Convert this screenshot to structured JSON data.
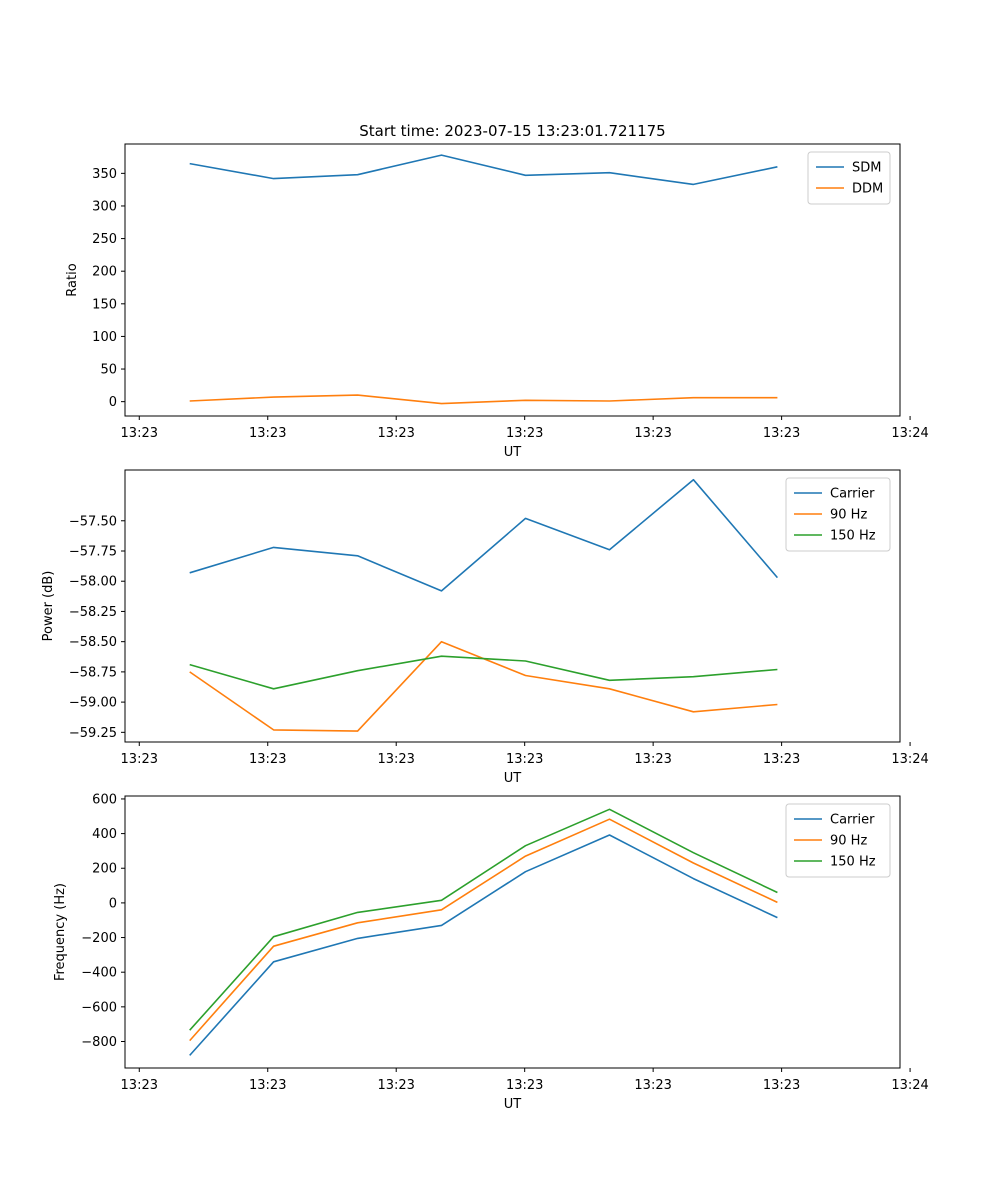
{
  "title": "Start time: 2023-07-15 13:23:01.721175",
  "chart_data": [
    {
      "type": "line",
      "title": "Start time: 2023-07-15 13:23:01.721175",
      "xlabel": "UT",
      "ylabel": "Ratio",
      "x": [
        0,
        1,
        2,
        3,
        4,
        5,
        6,
        7
      ],
      "xlim": [
        -0.77,
        8.46
      ],
      "ylim": [
        -22,
        395
      ],
      "xtick_positions": [
        -0.6,
        0.93,
        2.46,
        3.99,
        5.52,
        7.05,
        8.58
      ],
      "xtick_labels": [
        "13:23",
        "13:23",
        "13:23",
        "13:23",
        "13:23",
        "13:23",
        "13:24"
      ],
      "yticks": [
        0,
        50,
        100,
        150,
        200,
        250,
        300,
        350
      ],
      "legend": "top-right",
      "series": [
        {
          "name": "SDM",
          "color": "#1f77b4",
          "values": [
            365,
            342,
            348,
            378,
            347,
            351,
            333,
            360
          ]
        },
        {
          "name": "DDM",
          "color": "#ff7f0e",
          "values": [
            1,
            7,
            10,
            -3,
            2,
            1,
            6,
            6
          ]
        }
      ]
    },
    {
      "type": "line",
      "title": "",
      "xlabel": "UT",
      "ylabel": "Power (dB)",
      "x": [
        0,
        1,
        2,
        3,
        4,
        5,
        6,
        7
      ],
      "xlim": [
        -0.77,
        8.46
      ],
      "ylim": [
        -59.33,
        -57.08
      ],
      "xtick_positions": [
        -0.6,
        0.93,
        2.46,
        3.99,
        5.52,
        7.05,
        8.58
      ],
      "xtick_labels": [
        "13:23",
        "13:23",
        "13:23",
        "13:23",
        "13:23",
        "13:23",
        "13:24"
      ],
      "yticks": [
        -59.25,
        -59.0,
        -58.75,
        -58.5,
        -58.25,
        -58.0,
        -57.75,
        -57.5
      ],
      "ytick_labels": [
        "−59.25",
        "−59.00",
        "−58.75",
        "−58.50",
        "−58.25",
        "−58.00",
        "−57.75",
        "−57.50"
      ],
      "legend": "top-right",
      "series": [
        {
          "name": "Carrier",
          "color": "#1f77b4",
          "values": [
            -57.93,
            -57.72,
            -57.79,
            -58.08,
            -57.48,
            -57.74,
            -57.16,
            -57.97
          ]
        },
        {
          "name": "90 Hz",
          "color": "#ff7f0e",
          "values": [
            -58.75,
            -59.23,
            -59.24,
            -58.5,
            -58.78,
            -58.89,
            -59.08,
            -59.02
          ]
        },
        {
          "name": "150 Hz",
          "color": "#2ca02c",
          "values": [
            -58.69,
            -58.89,
            -58.74,
            -58.62,
            -58.66,
            -58.82,
            -58.79,
            -58.73
          ]
        }
      ]
    },
    {
      "type": "line",
      "title": "",
      "xlabel": "UT",
      "ylabel": "Frequency (Hz)",
      "x": [
        0,
        1,
        2,
        3,
        4,
        5,
        6,
        7
      ],
      "xlim": [
        -0.77,
        8.46
      ],
      "ylim": [
        -953,
        617
      ],
      "xtick_positions": [
        -0.6,
        0.93,
        2.46,
        3.99,
        5.52,
        7.05,
        8.58
      ],
      "xtick_labels": [
        "13:23",
        "13:23",
        "13:23",
        "13:23",
        "13:23",
        "13:23",
        "13:24"
      ],
      "yticks": [
        -800,
        -600,
        -400,
        -200,
        0,
        200,
        400,
        600
      ],
      "ytick_labels": [
        "−800",
        "−600",
        "−400",
        "−200",
        "0",
        "200",
        "400",
        "600"
      ],
      "legend": "top-right",
      "series": [
        {
          "name": "Carrier",
          "color": "#1f77b4",
          "values": [
            -880,
            -340,
            -205,
            -130,
            180,
            392,
            140,
            -85
          ]
        },
        {
          "name": "90 Hz",
          "color": "#ff7f0e",
          "values": [
            -795,
            -250,
            -115,
            -40,
            270,
            483,
            230,
            3
          ]
        },
        {
          "name": "150 Hz",
          "color": "#2ca02c",
          "values": [
            -735,
            -195,
            -55,
            15,
            330,
            540,
            290,
            60
          ]
        }
      ]
    }
  ]
}
